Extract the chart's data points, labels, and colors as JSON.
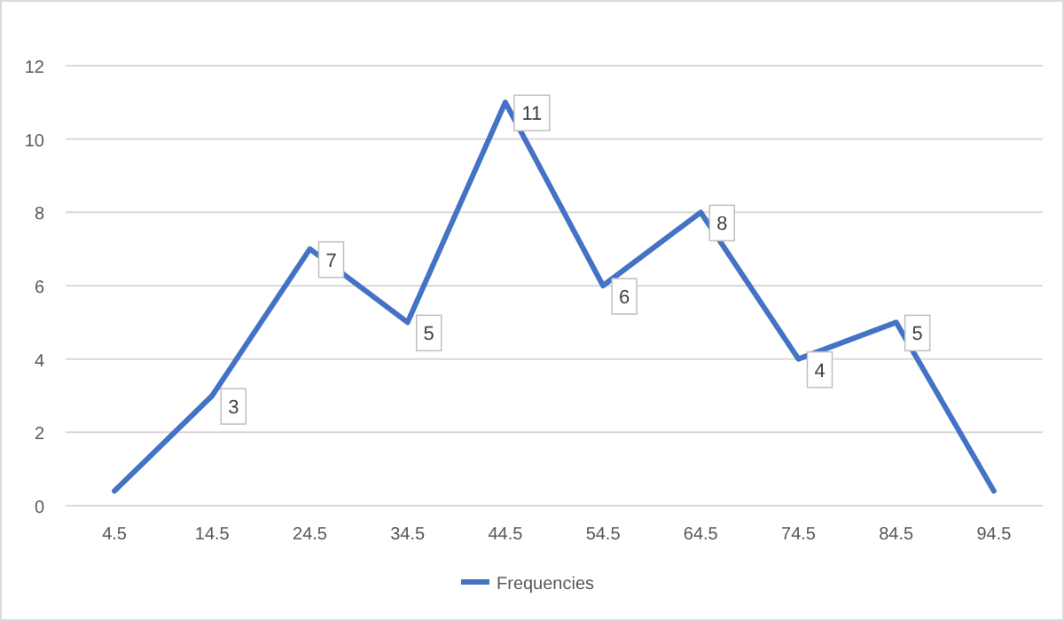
{
  "chart_data": {
    "type": "line",
    "categories": [
      "4.5",
      "14.5",
      "24.5",
      "34.5",
      "44.5",
      "54.5",
      "64.5",
      "74.5",
      "84.5",
      "94.5"
    ],
    "series": [
      {
        "name": "Frequencies",
        "color": "#4472c4",
        "values": [
          0.4,
          3,
          7,
          5,
          11,
          6,
          8,
          4,
          5,
          0.4
        ],
        "value_labels": [
          null,
          "3",
          "7",
          "5",
          "11",
          "6",
          "8",
          "4",
          "5",
          null
        ]
      }
    ],
    "ylim": [
      0,
      12
    ],
    "yticks": [
      0,
      2,
      4,
      6,
      8,
      10,
      12
    ],
    "grid": "y",
    "legend": "bottom",
    "marker": "none",
    "line_style": "solid"
  }
}
